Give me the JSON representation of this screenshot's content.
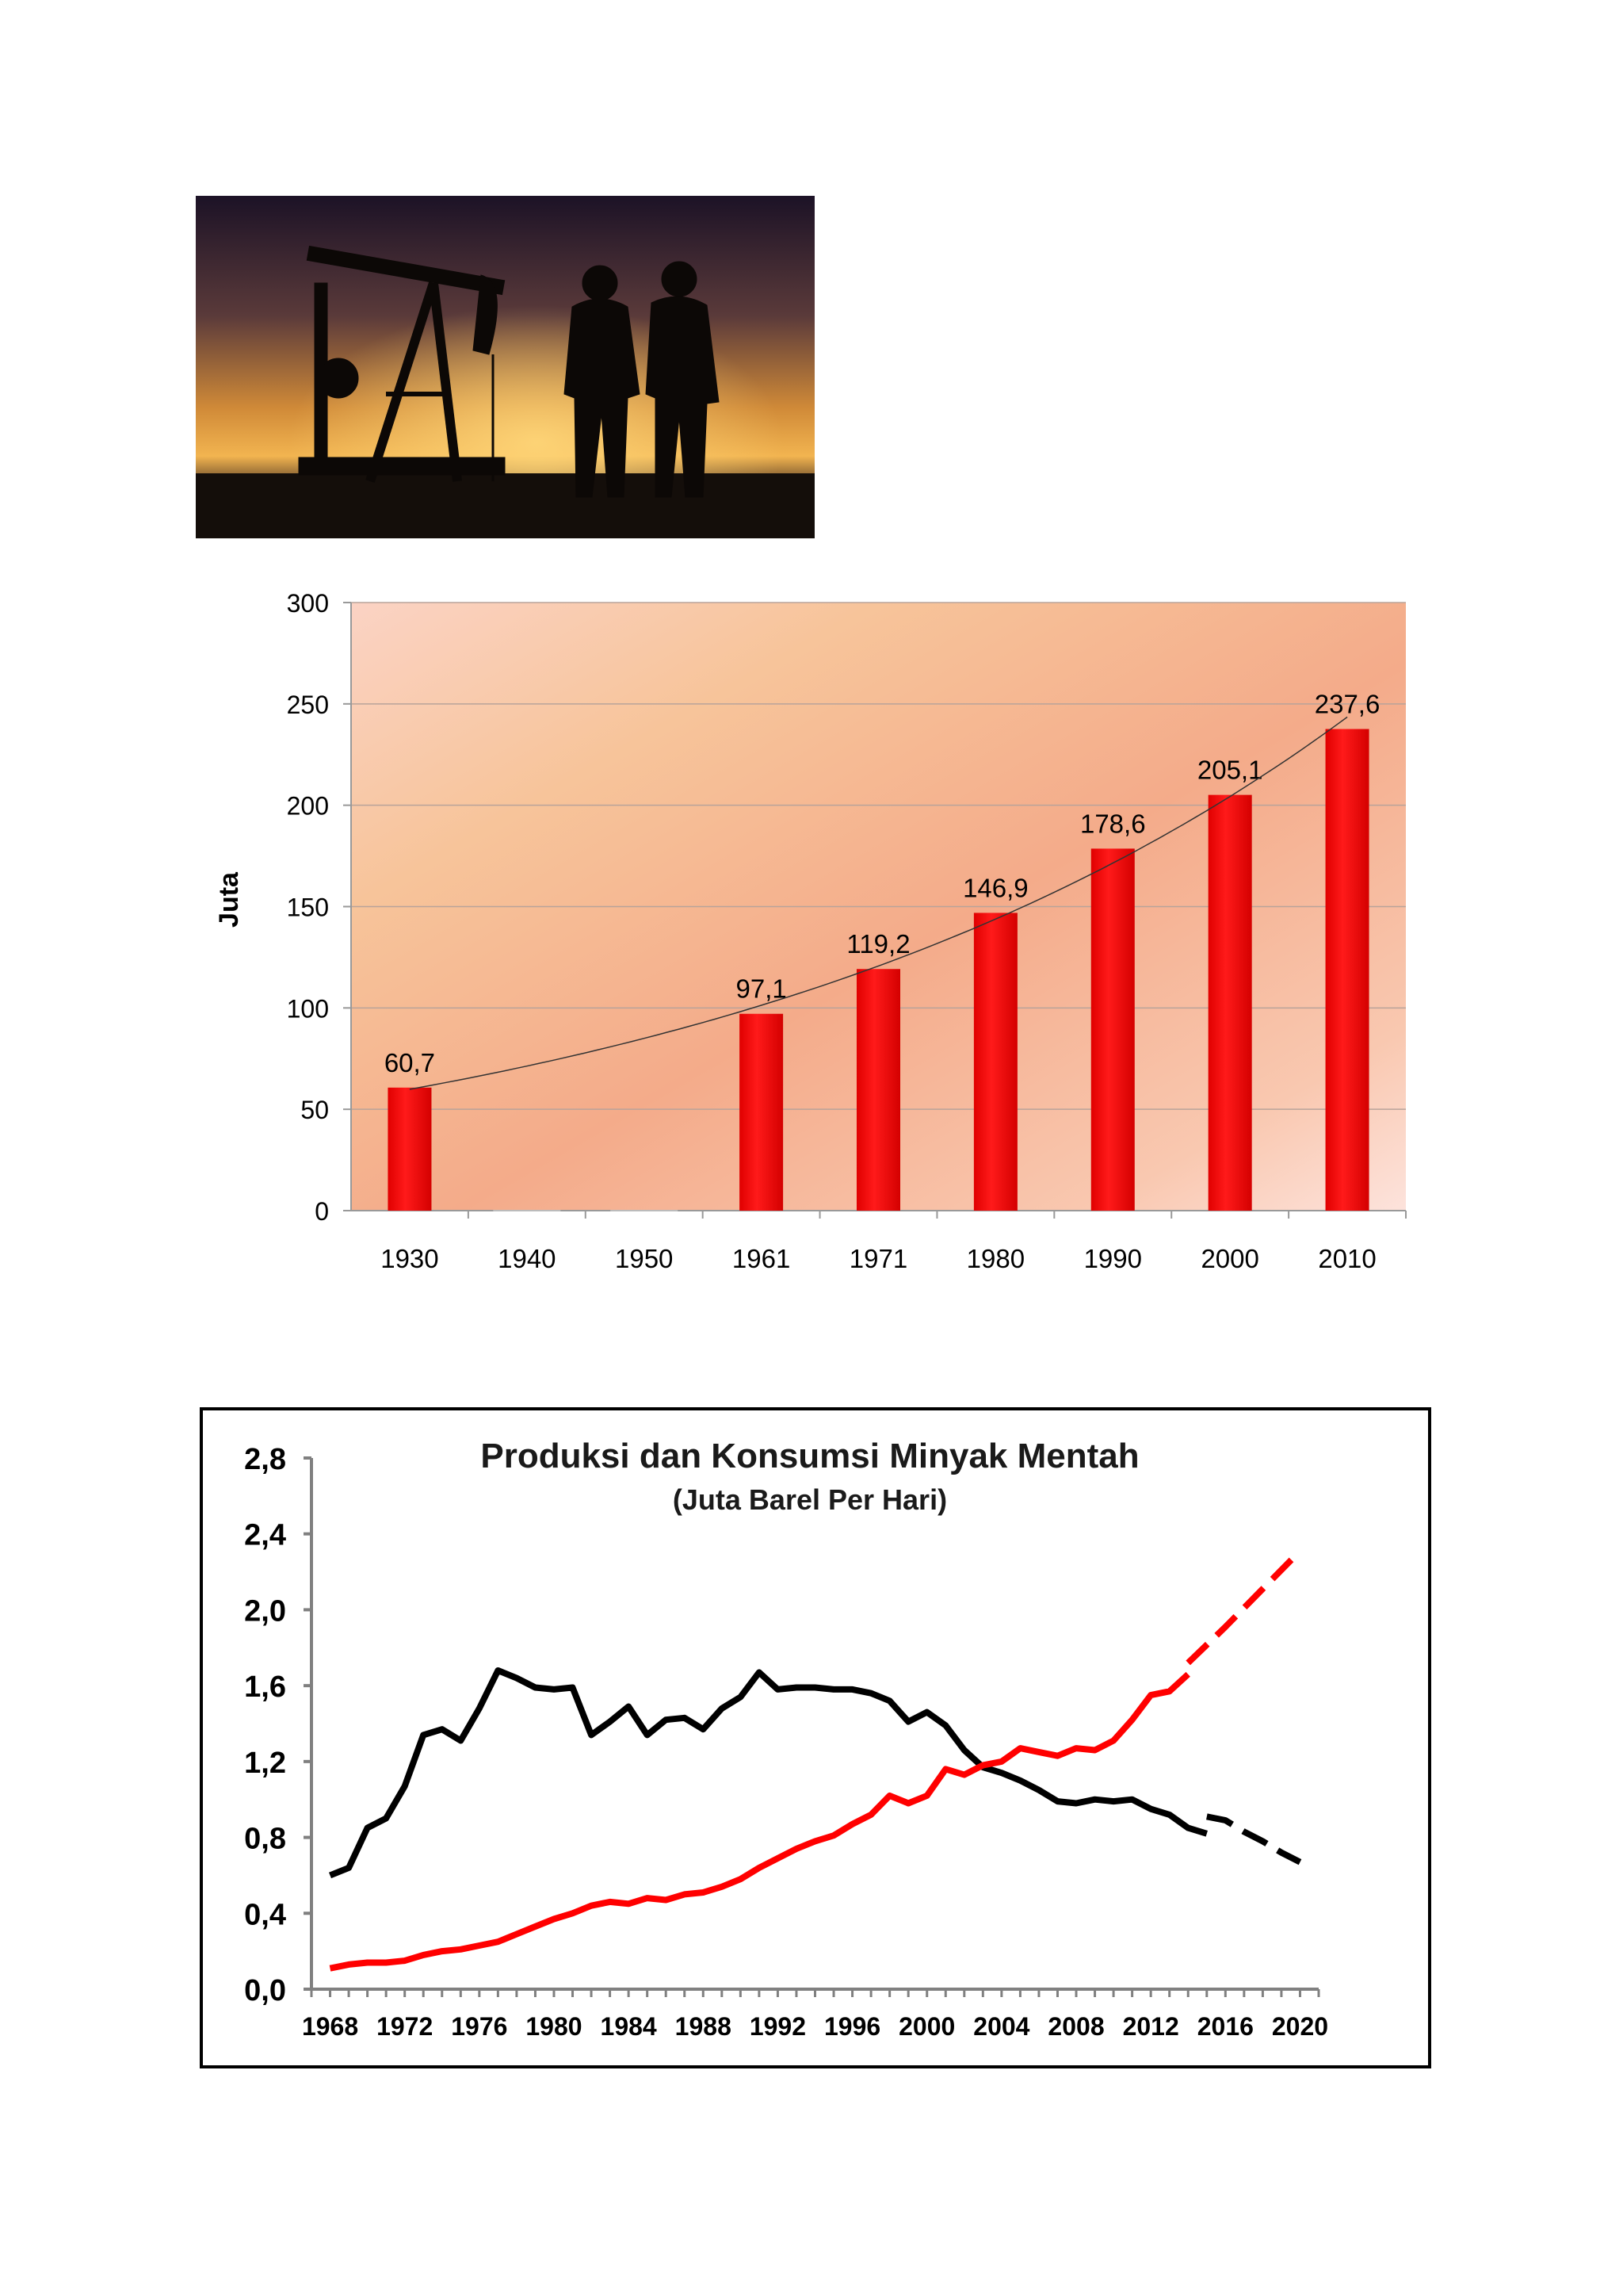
{
  "photo": {
    "icon": "oil-pumpjack-workers-silhouette-photo"
  },
  "chart_data": [
    {
      "type": "bar",
      "ylabel": "Juta",
      "ylim": [
        0,
        300
      ],
      "yticks": [
        "0",
        "50",
        "100",
        "150",
        "200",
        "250",
        "300"
      ],
      "categories": [
        "1930",
        "1940",
        "1950",
        "1961",
        "1971",
        "1980",
        "1990",
        "2000",
        "2010"
      ],
      "values": [
        60.7,
        null,
        null,
        97.1,
        119.2,
        146.9,
        178.6,
        205.1,
        237.6
      ],
      "labels": [
        "60,7",
        "",
        "",
        "97,1",
        "119,2",
        "146,9",
        "178,6",
        "205,1",
        "237,6"
      ],
      "trendline": "exponential",
      "grid": true,
      "colors": {
        "bar": "#ff0000",
        "trend": "#333333"
      }
    },
    {
      "type": "line",
      "title": "Produksi dan Konsumsi Minyak Mentah",
      "subtitle": "(Juta Barel Per Hari)",
      "ylim": [
        0,
        2.8
      ],
      "yticks": [
        "0,0",
        "0,4",
        "0,8",
        "1,2",
        "1,6",
        "2,0",
        "2,4",
        "2,8"
      ],
      "xlim": [
        1967,
        2021
      ],
      "xticks": [
        "1968",
        "1972",
        "1976",
        "1980",
        "1984",
        "1988",
        "1992",
        "1996",
        "2000",
        "2004",
        "2008",
        "2012",
        "2016",
        "2020"
      ],
      "series": [
        {
          "color": "#000000",
          "x": [
            1968,
            1969,
            1970,
            1971,
            1972,
            1973,
            1974,
            1975,
            1976,
            1977,
            1978,
            1979,
            1980,
            1981,
            1982,
            1983,
            1984,
            1985,
            1986,
            1987,
            1988,
            1989,
            1990,
            1991,
            1992,
            1993,
            1994,
            1995,
            1996,
            1997,
            1998,
            1999,
            2000,
            2001,
            2002,
            2003,
            2004,
            2005,
            2006,
            2007,
            2008,
            2009,
            2010,
            2011,
            2012,
            2013,
            2014,
            2015
          ],
          "values": [
            0.6,
            0.64,
            0.85,
            0.9,
            1.07,
            1.34,
            1.37,
            1.31,
            1.48,
            1.68,
            1.64,
            1.59,
            1.58,
            1.59,
            1.34,
            1.41,
            1.49,
            1.34,
            1.42,
            1.43,
            1.37,
            1.48,
            1.54,
            1.67,
            1.58,
            1.59,
            1.59,
            1.58,
            1.58,
            1.56,
            1.52,
            1.41,
            1.46,
            1.39,
            1.26,
            1.17,
            1.14,
            1.1,
            1.05,
            0.99,
            0.98,
            1.0,
            0.99,
            1.0,
            0.95,
            0.92,
            0.85,
            0.82
          ]
        },
        {
          "color": "#000000",
          "dashed": true,
          "x": [
            2015,
            2016,
            2017,
            2018,
            2019,
            2020
          ],
          "values": [
            0.91,
            0.89,
            0.83,
            0.78,
            0.72,
            0.67
          ]
        },
        {
          "color": "#ff0000",
          "x": [
            1968,
            1969,
            1970,
            1971,
            1972,
            1973,
            1974,
            1975,
            1976,
            1977,
            1978,
            1979,
            1980,
            1981,
            1982,
            1983,
            1984,
            1985,
            1986,
            1987,
            1988,
            1989,
            1990,
            1991,
            1992,
            1993,
            1994,
            1995,
            1996,
            1997,
            1998,
            1999,
            2000,
            2001,
            2002,
            2003,
            2004,
            2005,
            2006,
            2007,
            2008,
            2009,
            2010,
            2011,
            2012,
            2013,
            2014
          ],
          "values": [
            0.11,
            0.13,
            0.14,
            0.14,
            0.15,
            0.18,
            0.2,
            0.21,
            0.23,
            0.25,
            0.29,
            0.33,
            0.37,
            0.4,
            0.44,
            0.46,
            0.45,
            0.48,
            0.47,
            0.5,
            0.51,
            0.54,
            0.58,
            0.64,
            0.69,
            0.74,
            0.78,
            0.81,
            0.87,
            0.92,
            1.02,
            0.98,
            1.02,
            1.16,
            1.13,
            1.18,
            1.2,
            1.27,
            1.25,
            1.23,
            1.27,
            1.26,
            1.31,
            1.42,
            1.55,
            1.57,
            1.66
          ]
        },
        {
          "color": "#ff0000",
          "dashed": true,
          "x": [
            2014,
            2016,
            2018,
            2020
          ],
          "values": [
            1.72,
            1.91,
            2.11,
            2.31
          ]
        }
      ],
      "grid": false,
      "legend": false
    }
  ]
}
